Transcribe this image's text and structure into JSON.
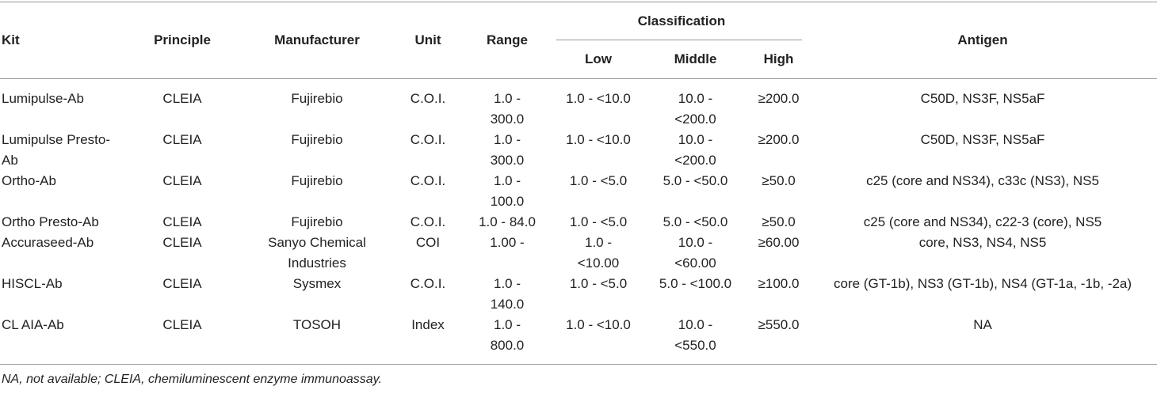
{
  "table": {
    "headers": [
      "Kit",
      "Principle",
      "Manufacturer",
      "Unit",
      "Range",
      "Classification",
      "Antigen"
    ],
    "subheaders": [
      "Low",
      "Middle",
      "High"
    ],
    "rows": [
      [
        "Lumipulse-Ab",
        "CLEIA",
        "Fujirebio",
        "C.O.I.",
        "1.0 - 300.0",
        "1.0 - <10.0",
        "10.0 - <200.0",
        "≥200.0",
        "C50D, NS3F, NS5aF"
      ],
      [
        "Lumipulse Presto-Ab",
        "CLEIA",
        "Fujirebio",
        "C.O.I.",
        "1.0 - 300.0",
        "1.0 - <10.0",
        "10.0 - <200.0",
        "≥200.0",
        "C50D, NS3F, NS5aF"
      ],
      [
        "Ortho-Ab",
        "CLEIA",
        "Fujirebio",
        "C.O.I.",
        "1.0 - 100.0",
        "1.0 - <5.0",
        "5.0 - <50.0",
        "≥50.0",
        "c25 (core and NS34), c33c (NS3), NS5"
      ],
      [
        "Ortho Presto-Ab",
        "CLEIA",
        "Fujirebio",
        "C.O.I.",
        "1.0 - 84.0",
        "1.0 - <5.0",
        "5.0 - <50.0",
        "≥50.0",
        "c25 (core and NS34), c22-3 (core), NS5"
      ],
      [
        "Accuraseed-Ab",
        "CLEIA",
        "Sanyo Chemical Industries",
        "COI",
        "1.00 -",
        "1.0 - <10.00",
        "10.0 - <60.00",
        "≥60.00",
        "core, NS3, NS4, NS5"
      ],
      [
        "HISCL-Ab",
        "CLEIA",
        "Sysmex",
        "C.O.I.",
        "1.0 - 140.0",
        "1.0 - <5.0",
        "5.0 - <100.0",
        "≥100.0",
        "core (GT-1b), NS3 (GT-1b), NS4 (GT-1a, -1b, -2a)"
      ],
      [
        "CL AIA-Ab",
        "CLEIA",
        "TOSOH",
        "Index",
        "1.0 - 800.0",
        "1.0 - <10.0",
        "10.0 - <550.0",
        "≥550.0",
        "NA"
      ]
    ]
  },
  "footnote": "NA, not available; CLEIA, chemiluminescent enzyme immunoassay."
}
